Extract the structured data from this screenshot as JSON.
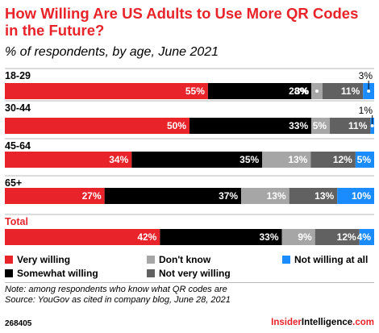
{
  "header": {
    "title": "How Willing Are US Adults to Use More QR Codes in the Future?",
    "subtitle": "% of respondents, by age, June 2021"
  },
  "chart_data": {
    "type": "bar",
    "orientation": "horizontal",
    "stacked": true,
    "categories": [
      "18-29",
      "30-44",
      "45-64",
      "65+",
      "Total"
    ],
    "series": [
      {
        "name": "Very willing",
        "color": "#e8232a",
        "values": [
          55,
          50,
          34,
          27,
          42
        ]
      },
      {
        "name": "Somewhat willing",
        "color": "#000000",
        "values": [
          28,
          33,
          35,
          37,
          33
        ]
      },
      {
        "name": "Don't know",
        "color": "#a6a6a6",
        "values": [
          3,
          5,
          13,
          13,
          9
        ]
      },
      {
        "name": "Not very willing",
        "color": "#616161",
        "values": [
          11,
          11,
          12,
          13,
          12
        ]
      },
      {
        "name": "Not willing at all",
        "color": "#1a8cff",
        "values": [
          3,
          1,
          5,
          10,
          4
        ]
      }
    ],
    "value_suffix": "%",
    "legend_position": "bottom",
    "xlim": [
      0,
      100
    ],
    "grid": false
  },
  "legend": [
    {
      "label": "Very willing",
      "color": "#e8232a"
    },
    {
      "label": "Don't know",
      "color": "#a6a6a6"
    },
    {
      "label": "Not willing at all",
      "color": "#1a8cff"
    },
    {
      "label": "Somewhat willing",
      "color": "#000000"
    },
    {
      "label": "Not very willing",
      "color": "#616161"
    }
  ],
  "notes": {
    "note": "Note: among respondents who know what QR codes are",
    "source": "Source: YouGov as cited in company blog, June 28, 2021"
  },
  "footer": {
    "chart_id": "268405",
    "brand_part1": "Insider",
    "brand_part2": "Intelligence",
    "brand_suffix": ".com"
  }
}
